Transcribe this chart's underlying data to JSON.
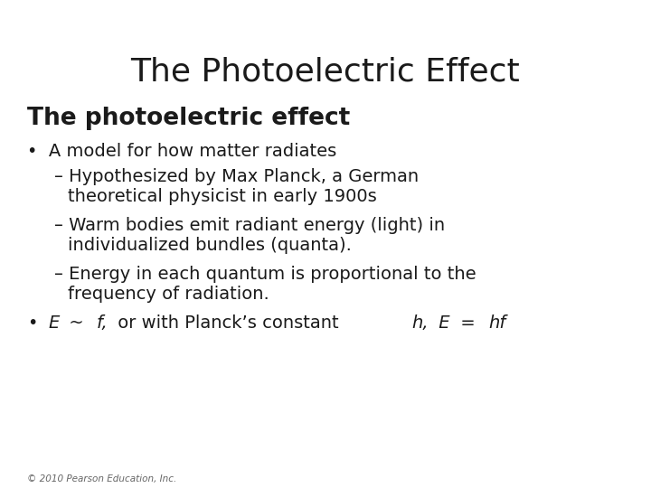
{
  "title": "The Photoelectric Effect",
  "background_color": "#ffffff",
  "title_fontsize": 26,
  "title_color": "#1a1a1a",
  "subtitle": "The photoelectric effect",
  "subtitle_fontsize": 19,
  "subtitle_color": "#1a1a1a",
  "footer": "© 2010 Pearson Education, Inc.",
  "footer_fontsize": 7.5,
  "footer_color": "#666666",
  "bullet1": "A model for how matter radiates",
  "sub1_line1": "– Hypothesized by Max Planck, a German",
  "sub1_line2": "   theoretical physicist in early 1900s",
  "sub2_line1": "– Warm bodies emit radiant energy (light) in",
  "sub2_line2": "   individualized bundles (quanta).",
  "sub3_line1": "– Energy in each quantum is proportional to the",
  "sub3_line2": "   frequency of radiation.",
  "body_fontsize": 14,
  "body_color": "#1a1a1a",
  "font_family": "DejaVu Sans"
}
